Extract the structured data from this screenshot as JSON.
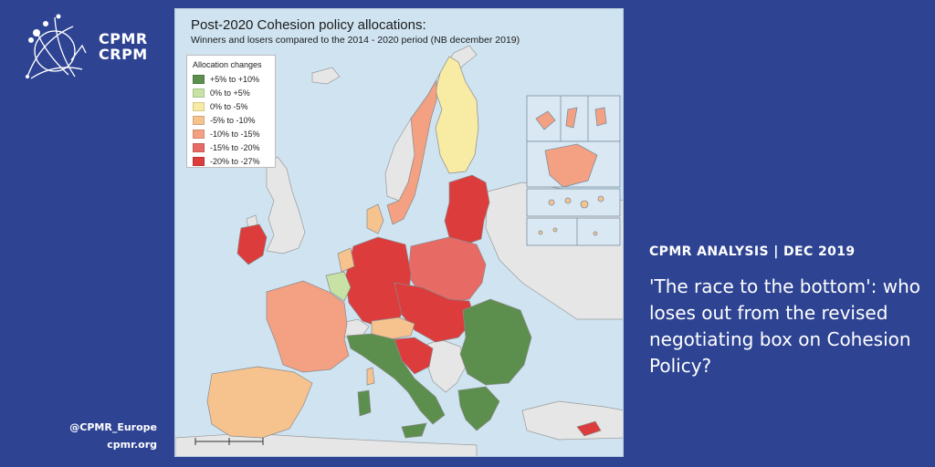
{
  "brand": {
    "logo_line1": "CPMR",
    "logo_line2": "CRPM",
    "twitter": "@CPMR_Europe",
    "website": "cpmr.org"
  },
  "map": {
    "title": "Post-2020 Cohesion policy allocations:",
    "subtitle": "Winners and losers compared to the 2014 - 2020 period (NB december 2019)",
    "legend_title": "Allocation changes",
    "legend": [
      {
        "label": "+5% to +10%",
        "color": "#5c8f4e"
      },
      {
        "label": "0% to +5%",
        "color": "#c7e2a4"
      },
      {
        "label": "0% to -5%",
        "color": "#f8eba3"
      },
      {
        "label": "-5% to -10%",
        "color": "#f6c38f"
      },
      {
        "label": "-10% to -15%",
        "color": "#f3a182"
      },
      {
        "label": "-15% to -20%",
        "color": "#e86a64"
      },
      {
        "label": "-20% to -27%",
        "color": "#dd3c3c"
      }
    ],
    "colors": {
      "sea": "#cfe3f1",
      "non_eu": "#e6e6e6",
      "border": "#8a8a8a"
    }
  },
  "analysis": {
    "heading": "CPMR ANALYSIS | DEC 2019",
    "text": "'The race to the bottom': who loses out from the revised negotiating box on Cohesion Policy?"
  }
}
